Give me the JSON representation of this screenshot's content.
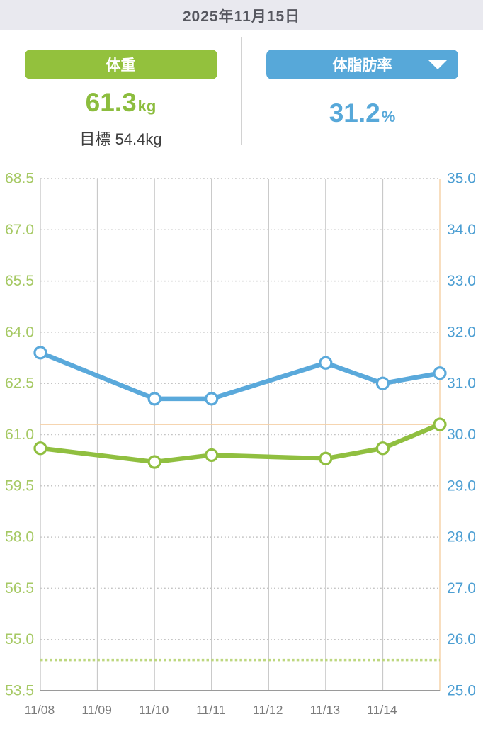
{
  "header": {
    "date": "2025年11月15日"
  },
  "summary": {
    "weight": {
      "label": "体重",
      "value": "61.3",
      "unit": "kg",
      "goal_label": "目標 54.4kg"
    },
    "bodyfat": {
      "label": "体脂肪率",
      "value": "31.2",
      "unit": "%"
    }
  },
  "colors": {
    "green_accent": "#93c13d",
    "blue_accent": "#57a8d9",
    "green_line": "#90bf40",
    "blue_line": "#5aa9db",
    "left_axis_label": "#a6c964",
    "right_axis_label": "#4d9fd3",
    "x_axis_label": "#7b7b7b",
    "grid_dotted": "#c4c4c4",
    "grid_solid": "#c9c9c9",
    "axis_line": "#9a9a9a",
    "orange_reference": "#f5cfa4",
    "goal_dotted_line": "#bdd77f",
    "header_bg": "#e9e9ef"
  },
  "chart_data": {
    "type": "line",
    "title": "",
    "legend": false,
    "grid": true,
    "dates": [
      "11/08",
      "11/09",
      "11/10",
      "11/11",
      "11/12",
      "11/13",
      "11/14",
      "11/15"
    ],
    "x_tick_labels": [
      "11/08",
      "11/09",
      "11/10",
      "11/11",
      "11/12",
      "11/13",
      "11/14"
    ],
    "left_axis": {
      "name": "weight-kg",
      "min": 53.5,
      "max": 68.5,
      "tick_labels": [
        "68.5",
        "67.0",
        "65.5",
        "64.0",
        "62.5",
        "61.0",
        "59.5",
        "58.0",
        "56.5",
        "55.0",
        "53.5"
      ]
    },
    "right_axis": {
      "name": "body-fat-percent",
      "min": 25.0,
      "max": 35.0,
      "tick_labels": [
        "35.0",
        "34.0",
        "33.0",
        "32.0",
        "31.0",
        "30.0",
        "29.0",
        "28.0",
        "27.0",
        "26.0",
        "25.0"
      ]
    },
    "series": [
      {
        "name": "体重",
        "axis": "left",
        "color": "#90bf40",
        "points": [
          [
            "11/08",
            60.6
          ],
          [
            "11/10",
            60.2
          ],
          [
            "11/11",
            60.4
          ],
          [
            "11/13",
            60.3
          ],
          [
            "11/14",
            60.6
          ],
          [
            "11/15",
            61.3
          ]
        ]
      },
      {
        "name": "体脂肪率",
        "axis": "right",
        "color": "#5aa9db",
        "points": [
          [
            "11/08",
            31.6
          ],
          [
            "11/10",
            30.7
          ],
          [
            "11/11",
            30.7
          ],
          [
            "11/13",
            31.4
          ],
          [
            "11/14",
            31.0
          ],
          [
            "11/15",
            31.2
          ]
        ]
      }
    ],
    "reference_lines": [
      {
        "kind": "horizontal",
        "axis": "left",
        "value": 61.3,
        "color": "#f5cfa4",
        "style": "solid",
        "meaning": "latest-weight"
      },
      {
        "kind": "vertical",
        "date": "11/15",
        "color": "#f5cfa4",
        "style": "solid",
        "meaning": "current-day"
      },
      {
        "kind": "horizontal",
        "axis": "left",
        "value": 54.4,
        "color": "#bdd77f",
        "style": "dotted",
        "meaning": "goal-weight"
      }
    ]
  }
}
